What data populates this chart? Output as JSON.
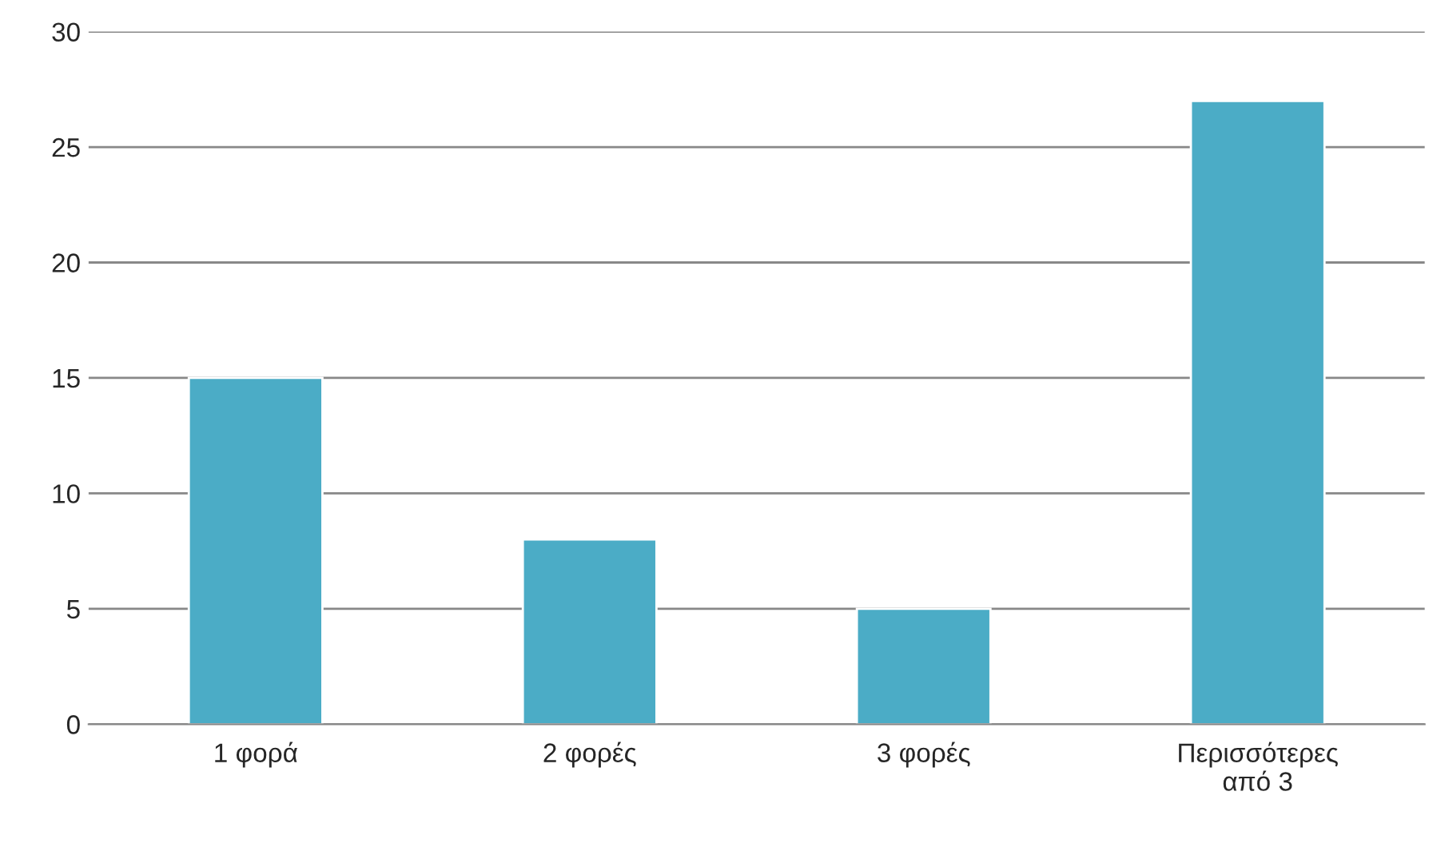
{
  "chart_data": {
    "type": "bar",
    "categories": [
      "1 φορά",
      "2 φορές",
      "3 φορές",
      "Περισσότερες\nαπό 3"
    ],
    "values": [
      15,
      8,
      5,
      27
    ],
    "color": "#4bacc6",
    "ylim": [
      0,
      30
    ],
    "yticks": [
      0,
      5,
      10,
      15,
      20,
      25,
      30
    ],
    "grid": "y",
    "legend": false
  }
}
